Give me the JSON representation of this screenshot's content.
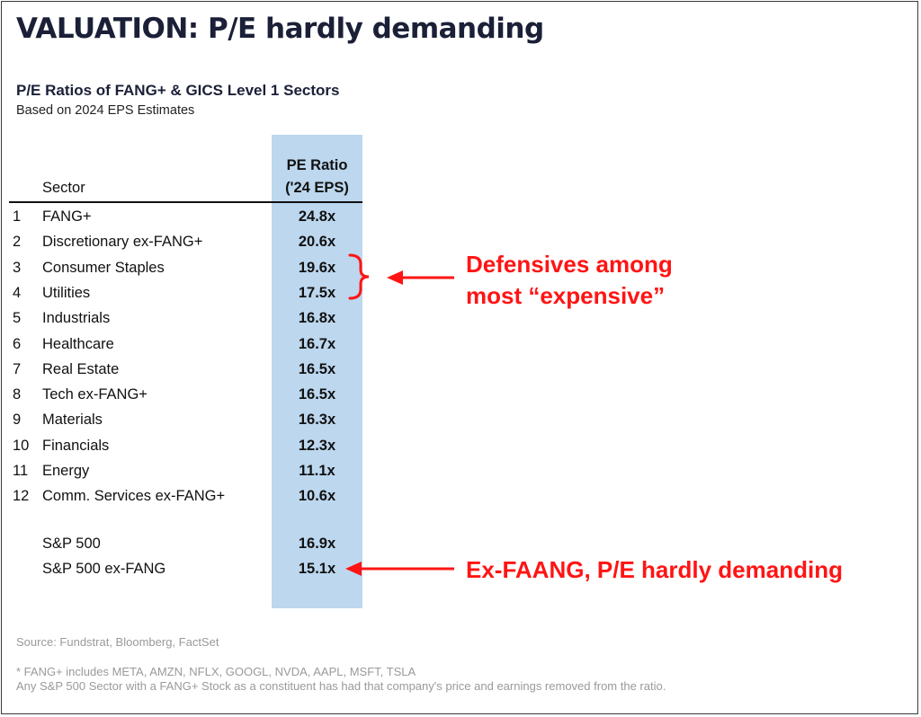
{
  "title": "VALUATION: P/E hardly demanding",
  "chart_data": {
    "type": "table",
    "title": "P/E Ratios of FANG+ & GICS Level 1 Sectors",
    "subtitle": "Based on 2024 EPS Estimates",
    "columns": {
      "sector": "Sector",
      "pe_line1": "PE Ratio",
      "pe_line2": "('24 EPS)"
    },
    "rows": [
      {
        "rank": "1",
        "sector": "FANG+",
        "pe": "24.8x"
      },
      {
        "rank": "2",
        "sector": "Discretionary ex-FANG+",
        "pe": "20.6x"
      },
      {
        "rank": "3",
        "sector": "Consumer Staples",
        "pe": "19.6x"
      },
      {
        "rank": "4",
        "sector": "Utilities",
        "pe": "17.5x"
      },
      {
        "rank": "5",
        "sector": "Industrials",
        "pe": "16.8x"
      },
      {
        "rank": "6",
        "sector": "Healthcare",
        "pe": "16.7x"
      },
      {
        "rank": "7",
        "sector": "Real Estate",
        "pe": "16.5x"
      },
      {
        "rank": "8",
        "sector": "Tech ex-FANG+",
        "pe": "16.5x"
      },
      {
        "rank": "9",
        "sector": "Materials",
        "pe": "16.3x"
      },
      {
        "rank": "10",
        "sector": "Financials",
        "pe": "12.3x"
      },
      {
        "rank": "11",
        "sector": "Energy",
        "pe": "11.1x"
      },
      {
        "rank": "12",
        "sector": "Comm. Services ex-FANG+",
        "pe": "10.6x"
      }
    ],
    "summary_rows": [
      {
        "sector": "S&P 500",
        "pe": "16.9x"
      },
      {
        "sector": "S&P 500 ex-FANG",
        "pe": "15.1x"
      }
    ],
    "annotations": [
      {
        "line1": "Defensives among",
        "line2": "most “expensive”"
      },
      {
        "line1": "Ex-FAANG, P/E hardly demanding"
      }
    ]
  },
  "source": "Source: Fundstrat, Bloomberg, FactSet",
  "footnotes": [
    "* FANG+ includes META, AMZN, NFLX, GOOGL, NVDA, AAPL, MSFT, TSLA",
    "Any S&P 500 Sector with a FANG+ Stock as a constituent has had that company's price and earnings removed from the ratio."
  ],
  "colors": {
    "title": "#1b2038",
    "column_highlight": "#bcd7ee",
    "annotation": "#ff1414",
    "muted_text": "#9a9a9a"
  }
}
